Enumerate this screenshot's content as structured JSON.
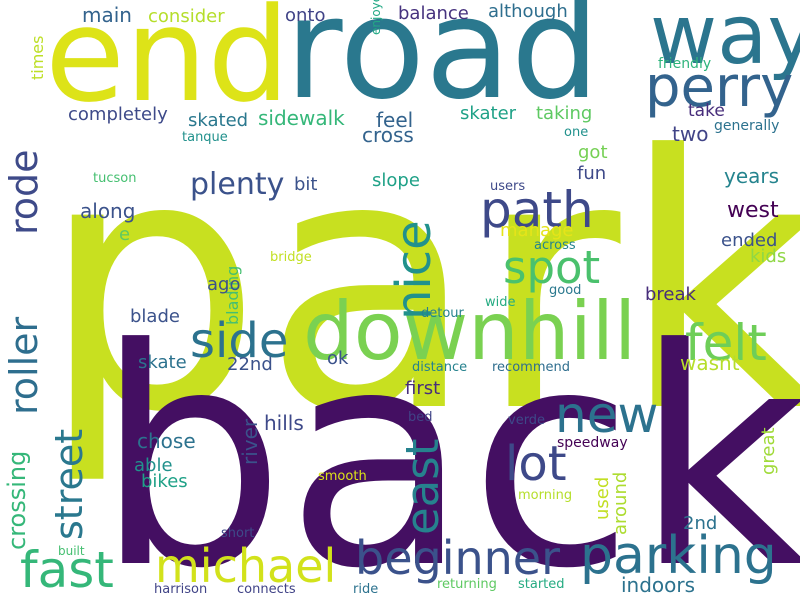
{
  "words": [
    {
      "text": "park",
      "color": "#c8e020"
    },
    {
      "text": "back",
      "color": "#440f62"
    },
    {
      "text": "road",
      "color": "#2a788e"
    },
    {
      "text": "end",
      "color": "#dde318"
    },
    {
      "text": "way",
      "color": "#2b758e"
    },
    {
      "text": "downhill",
      "color": "#7ad151"
    },
    {
      "text": "perry",
      "color": "#33638d"
    },
    {
      "text": "parking",
      "color": "#2c728e"
    },
    {
      "text": "beginner",
      "color": "#3b528b"
    },
    {
      "text": "michael",
      "color": "#d2e21b"
    },
    {
      "text": "fast",
      "color": "#35b779"
    },
    {
      "text": "path",
      "color": "#3e4989"
    },
    {
      "text": "spot",
      "color": "#4ac16d"
    },
    {
      "text": "nice",
      "color": "#21918c"
    },
    {
      "text": "side",
      "color": "#2c728e"
    },
    {
      "text": "felt",
      "color": "#6ece58"
    },
    {
      "text": "new",
      "color": "#2c728e"
    },
    {
      "text": "lot",
      "color": "#3e4989"
    },
    {
      "text": "east",
      "color": "#26828e"
    },
    {
      "text": "roller",
      "color": "#2e6e8e"
    },
    {
      "text": "rode",
      "color": "#3e4a89"
    },
    {
      "text": "street",
      "color": "#2a788e"
    },
    {
      "text": "crossing",
      "color": "#35b779"
    },
    {
      "text": "plenty",
      "color": "#3b528b"
    },
    {
      "text": "main",
      "color": "#33638d"
    },
    {
      "text": "consider",
      "color": "#b5de2b"
    },
    {
      "text": "onto",
      "color": "#404387"
    },
    {
      "text": "balance",
      "color": "#46327e"
    },
    {
      "text": "although",
      "color": "#2e6e8e"
    },
    {
      "text": "completely",
      "color": "#3e4a89"
    },
    {
      "text": "skated",
      "color": "#2a788e"
    },
    {
      "text": "sidewalk",
      "color": "#35b779"
    },
    {
      "text": "feel",
      "color": "#33638d"
    },
    {
      "text": "cross",
      "color": "#33638d"
    },
    {
      "text": "skater",
      "color": "#1fa187"
    },
    {
      "text": "taking",
      "color": "#5ec962"
    },
    {
      "text": "take",
      "color": "#472d7b"
    },
    {
      "text": "two",
      "color": "#414487"
    },
    {
      "text": "generally",
      "color": "#2c728e"
    },
    {
      "text": "one",
      "color": "#21918c"
    },
    {
      "text": "friendly",
      "color": "#2fb47c"
    },
    {
      "text": "times",
      "color": "#bddf26"
    },
    {
      "text": "enjoyed",
      "color": "#22a884"
    },
    {
      "text": "tanque",
      "color": "#21918c"
    },
    {
      "text": "tucson",
      "color": "#44bf70"
    },
    {
      "text": "bit",
      "color": "#3b528b"
    },
    {
      "text": "slope",
      "color": "#1fa187"
    },
    {
      "text": "got",
      "color": "#75d054"
    },
    {
      "text": "fun",
      "color": "#3e4989"
    },
    {
      "text": "years",
      "color": "#25848e"
    },
    {
      "text": "west",
      "color": "#440154"
    },
    {
      "text": "along",
      "color": "#3b528b"
    },
    {
      "text": "e",
      "color": "#5ec962"
    },
    {
      "text": "manage",
      "color": "#e5e419"
    },
    {
      "text": "across",
      "color": "#25848e"
    },
    {
      "text": "users",
      "color": "#3e4989"
    },
    {
      "text": "ended",
      "color": "#3b528b"
    },
    {
      "text": "kids",
      "color": "#8fd744"
    },
    {
      "text": "blading",
      "color": "#44bf70"
    },
    {
      "text": "bridge",
      "color": "#c2df23"
    },
    {
      "text": "ago",
      "color": "#3b528b"
    },
    {
      "text": "good",
      "color": "#2a788e"
    },
    {
      "text": "break",
      "color": "#472d7b"
    },
    {
      "text": "blade",
      "color": "#3b528b"
    },
    {
      "text": "detour",
      "color": "#26828e"
    },
    {
      "text": "wide",
      "color": "#25ab82"
    },
    {
      "text": "ok",
      "color": "#3b528b"
    },
    {
      "text": "skate",
      "color": "#2c728e"
    },
    {
      "text": "22nd",
      "color": "#3b528b"
    },
    {
      "text": "first",
      "color": "#472d7b"
    },
    {
      "text": "wasnt",
      "color": "#b5de2b"
    },
    {
      "text": "distance",
      "color": "#26828e"
    },
    {
      "text": "recommend",
      "color": "#2e6e8e"
    },
    {
      "text": "river",
      "color": "#3b528b"
    },
    {
      "text": "hills",
      "color": "#3e4989"
    },
    {
      "text": "bed",
      "color": "#414487"
    },
    {
      "text": "verde",
      "color": "#3e4989"
    },
    {
      "text": "great",
      "color": "#a0da39"
    },
    {
      "text": "chose",
      "color": "#2c728e"
    },
    {
      "text": "able",
      "color": "#21918c"
    },
    {
      "text": "bikes",
      "color": "#1fa187"
    },
    {
      "text": "speedway",
      "color": "#440154"
    },
    {
      "text": "smooth",
      "color": "#dde318"
    },
    {
      "text": "used",
      "color": "#c2df23"
    },
    {
      "text": "around",
      "color": "#addc30"
    },
    {
      "text": "morning",
      "color": "#b5de2b"
    },
    {
      "text": "2nd",
      "color": "#2c728e"
    },
    {
      "text": "built",
      "color": "#44bf70"
    },
    {
      "text": "short",
      "color": "#3e4a89"
    },
    {
      "text": "indoors",
      "color": "#2c728e"
    },
    {
      "text": "harrison",
      "color": "#414487"
    },
    {
      "text": "connects",
      "color": "#404387"
    },
    {
      "text": "ride",
      "color": "#2c728e"
    },
    {
      "text": "returning",
      "color": "#5ec962"
    },
    {
      "text": "started",
      "color": "#25ab82"
    }
  ]
}
